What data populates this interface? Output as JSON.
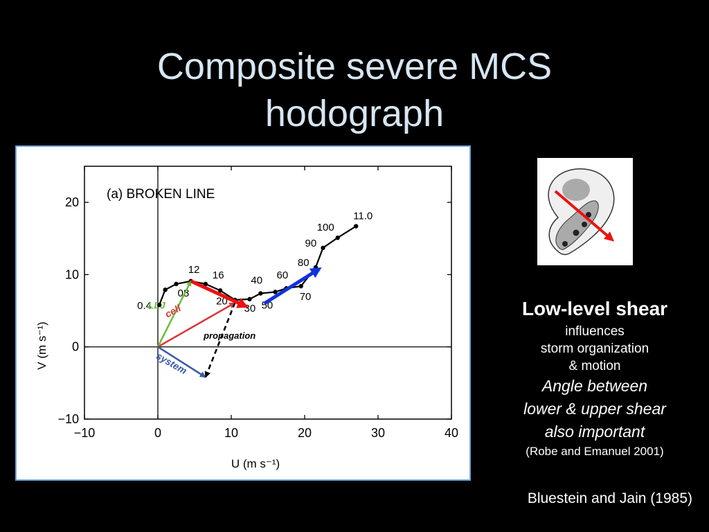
{
  "slide": {
    "title_line1": "Composite severe MCS",
    "title_line2": "hodograph"
  },
  "side_text": {
    "heading": "Low-level shear",
    "line1": "influences",
    "line2": "storm organization",
    "line3": "& motion",
    "italic1": "Angle between",
    "italic2": "lower & upper shear",
    "italic3": "also important",
    "reference": "(Robe and Emanuel 2001)"
  },
  "citation": "Bluestein and Jain (1985)",
  "chart_data": {
    "type": "line",
    "title": "(a) BROKEN LINE",
    "xlabel": "U (m s⁻¹)",
    "ylabel": "V (m s⁻¹)",
    "xlim": [
      -10,
      40
    ],
    "ylim": [
      -10,
      25
    ],
    "x_ticks": [
      "−10",
      "0",
      "10",
      "20",
      "30",
      "40"
    ],
    "y_ticks": [
      "−10",
      "0",
      "10",
      "20"
    ],
    "grid": false,
    "series": [
      {
        "points": [
          {
            "x": 0.2,
            "y": 5.8,
            "label": "0.4"
          },
          {
            "x": 1.0,
            "y": 7.9,
            "label": ""
          },
          {
            "x": 2.5,
            "y": 8.7,
            "label": "08"
          },
          {
            "x": 4.5,
            "y": 9.1,
            "label": "12"
          },
          {
            "x": 6.5,
            "y": 8.7,
            "label": "16"
          },
          {
            "x": 8.5,
            "y": 7.8,
            "label": "20"
          },
          {
            "x": 10.5,
            "y": 6.5,
            "label": ""
          },
          {
            "x": 12.5,
            "y": 6.6,
            "label": "30"
          },
          {
            "x": 14.0,
            "y": 7.4,
            "label": "40"
          },
          {
            "x": 16.0,
            "y": 7.6,
            "label": "50"
          },
          {
            "x": 17.5,
            "y": 8.1,
            "label": "60"
          },
          {
            "x": 19.5,
            "y": 8.4,
            "label": "70"
          },
          {
            "x": 21.5,
            "y": 11.0,
            "label": "80"
          },
          {
            "x": 22.5,
            "y": 13.7,
            "label": "90"
          },
          {
            "x": 24.5,
            "y": 15.1,
            "label": "100"
          },
          {
            "x": 27.0,
            "y": 16.7,
            "label": "11.0"
          }
        ]
      }
    ],
    "vectors": [
      {
        "label": "LLJ",
        "color": "#6abf3c",
        "from": [
          0,
          0
        ],
        "to": [
          4.5,
          9.1
        ]
      },
      {
        "label": "cell",
        "color": "#d93a3a",
        "from": [
          0,
          0
        ],
        "to": [
          10.5,
          6.1
        ]
      },
      {
        "label": "system",
        "color": "#3a5aa8",
        "from": [
          0,
          0
        ],
        "to": [
          6.5,
          -4.2
        ]
      },
      {
        "label": "propagation",
        "color": "#000000",
        "from": [
          10.5,
          6.1
        ],
        "to": [
          6.5,
          -4.2
        ]
      }
    ],
    "shear_arrows": [
      {
        "color": "#ee1111",
        "from": [
          4.5,
          9.1
        ],
        "to": [
          12.0,
          5.6
        ]
      },
      {
        "color": "#1133dd",
        "from": [
          14.5,
          6.0
        ],
        "to": [
          22.0,
          10.8
        ]
      }
    ]
  }
}
